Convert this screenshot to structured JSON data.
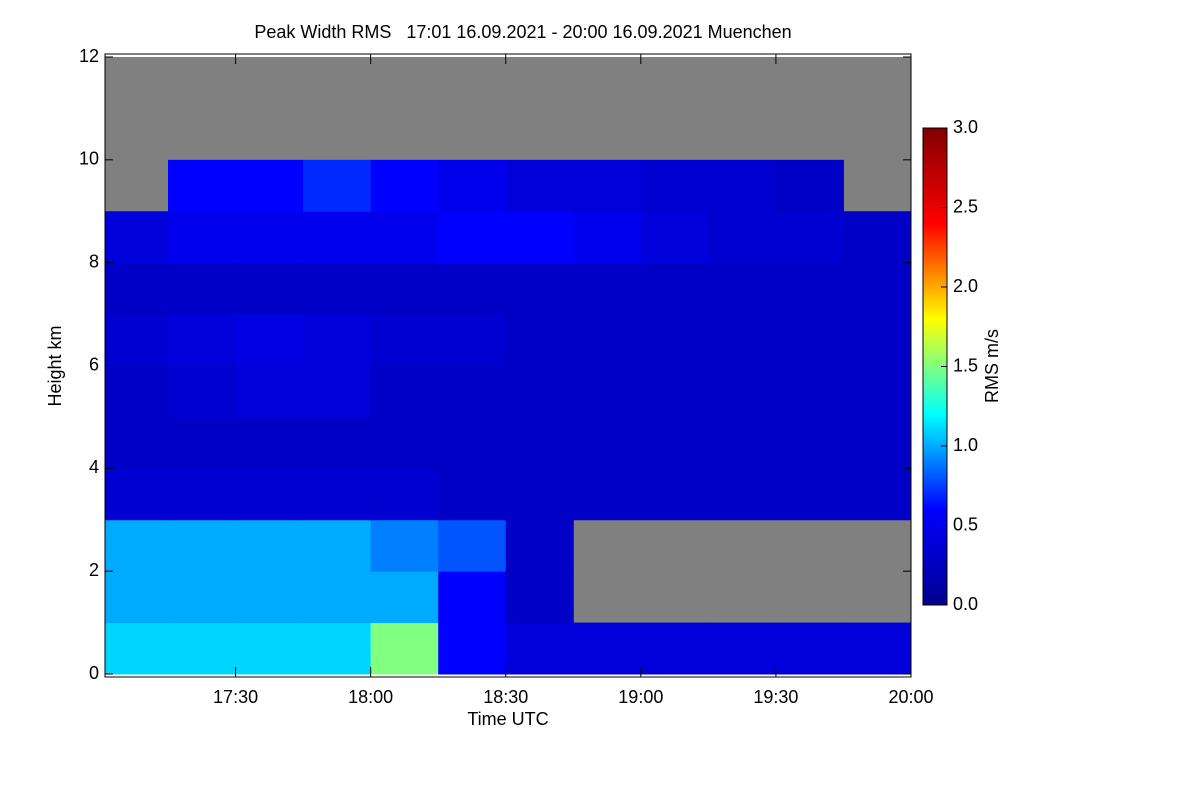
{
  "chart_data": {
    "type": "heatmap",
    "title": "Peak Width RMS   17:01 16.09.2021 - 20:00 16.09.2021 Muenchen",
    "x_label": "Time UTC",
    "y_label": "Height km",
    "colorbar_label": "RMS m/s",
    "xlim": [
      17.0167,
      20.0
    ],
    "xticks": [
      {
        "value": 17.5,
        "label": "17:30"
      },
      {
        "value": 18.0,
        "label": "18:00"
      },
      {
        "value": 18.5,
        "label": "18:30"
      },
      {
        "value": 19.0,
        "label": "19:00"
      },
      {
        "value": 19.5,
        "label": "19:30"
      },
      {
        "value": 20.0,
        "label": "20:00"
      }
    ],
    "ylim": [
      0,
      12
    ],
    "yticks": [
      0,
      2,
      4,
      6,
      8,
      10,
      12
    ],
    "zlim": [
      0,
      3
    ],
    "zticks": [
      {
        "value": 0,
        "label": "0.0"
      },
      {
        "value": 0.5,
        "label": "0.5"
      },
      {
        "value": 1,
        "label": "1.0"
      },
      {
        "value": 1.5,
        "label": "1.5"
      },
      {
        "value": 2,
        "label": "2.0"
      },
      {
        "value": 2.5,
        "label": "2.5"
      },
      {
        "value": 3,
        "label": "3.0"
      }
    ],
    "colormap": [
      "#00008f",
      "#0000ff",
      "#00ffff",
      "#ffff00",
      "#ff0000",
      "#800000"
    ],
    "missing_color": "#808080",
    "x_bins": [
      17.0167,
      17.25,
      17.5,
      17.75,
      18.0,
      18.25,
      18.5,
      18.75,
      19.0,
      19.25,
      19.5,
      19.75,
      20.0
    ],
    "y_bins": [
      0,
      1,
      2,
      3,
      4,
      5,
      6,
      7,
      8,
      9,
      10,
      11,
      12
    ],
    "z": [
      [
        1.1,
        1.1,
        1.1,
        1.1,
        1.5,
        0.6,
        0.4,
        0.4,
        0.4,
        0.4,
        0.4,
        0.4
      ],
      [
        1.0,
        1.0,
        1.0,
        1.0,
        1.0,
        0.6,
        0.3,
        null,
        null,
        null,
        null,
        null
      ],
      [
        1.0,
        1.0,
        1.0,
        1.0,
        0.9,
        0.8,
        0.3,
        null,
        null,
        null,
        null,
        null
      ],
      [
        0.35,
        0.35,
        0.35,
        0.35,
        0.35,
        0.3,
        0.3,
        0.3,
        0.3,
        0.3,
        0.3,
        0.3
      ],
      [
        0.3,
        0.3,
        0.3,
        0.3,
        0.3,
        0.3,
        0.3,
        0.3,
        0.3,
        0.3,
        0.3,
        0.3
      ],
      [
        0.3,
        0.35,
        0.4,
        0.4,
        0.3,
        0.3,
        0.3,
        0.3,
        0.3,
        0.3,
        0.3,
        0.3
      ],
      [
        0.35,
        0.4,
        0.45,
        0.4,
        0.35,
        0.35,
        0.3,
        0.3,
        0.3,
        0.3,
        0.3,
        0.3
      ],
      [
        0.3,
        0.3,
        0.3,
        0.3,
        0.3,
        0.3,
        0.3,
        0.3,
        0.3,
        0.3,
        0.3,
        0.3
      ],
      [
        0.4,
        0.5,
        0.5,
        0.5,
        0.5,
        0.6,
        0.6,
        0.5,
        0.4,
        0.35,
        0.35,
        0.3
      ],
      [
        null,
        0.6,
        0.6,
        0.7,
        0.6,
        0.5,
        0.4,
        0.4,
        0.35,
        0.35,
        0.3,
        null
      ],
      [
        null,
        null,
        null,
        null,
        null,
        null,
        null,
        null,
        null,
        null,
        null,
        null
      ],
      [
        null,
        null,
        null,
        null,
        null,
        null,
        null,
        null,
        null,
        null,
        null,
        null
      ]
    ]
  }
}
